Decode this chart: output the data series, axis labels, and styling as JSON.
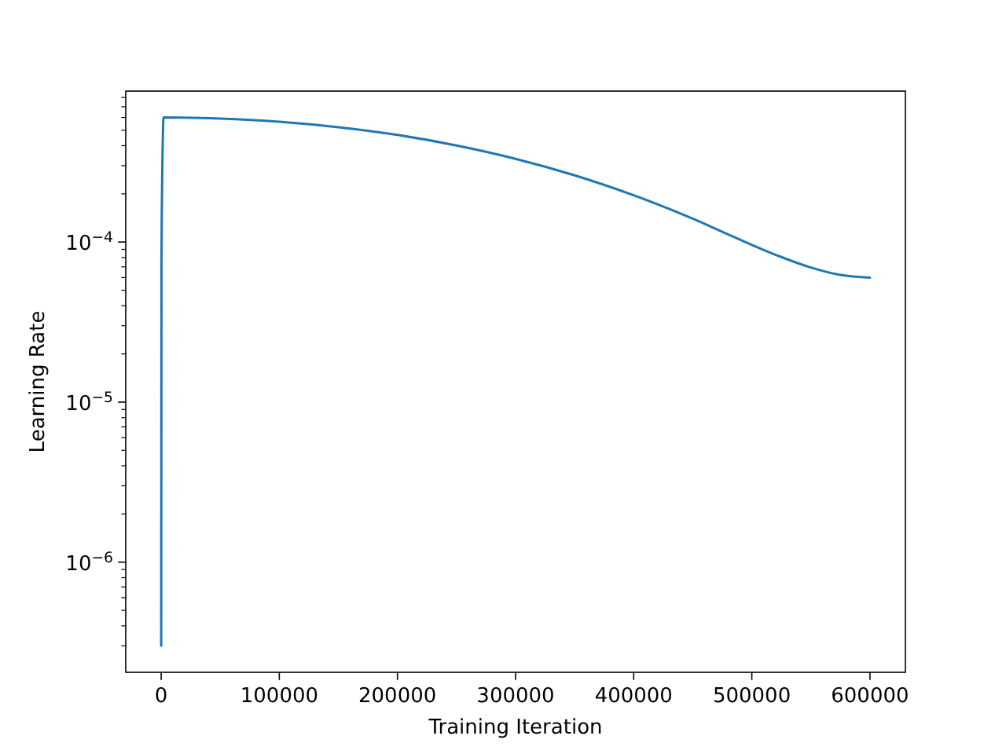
{
  "chart_data": {
    "type": "line",
    "xlabel": "Training Iteration",
    "ylabel": "Learning Rate",
    "log": "y",
    "x": [
      0,
      250,
      500,
      1000,
      2000,
      50000,
      100000,
      150000,
      200000,
      250000,
      300000,
      350000,
      400000,
      450000,
      475000,
      500000,
      525000,
      550000,
      575000,
      600000
    ],
    "series": [
      {
        "color": "#1f77b4",
        "values": [
          3e-07,
          7.5e-05,
          0.00015,
          0.0003,
          0.0006,
          0.000591,
          0.000565,
          0.000522,
          0.000467,
          0.000401,
          0.000331,
          0.000261,
          0.000196,
          0.00014,
          0.000116,
          9.6e-05,
          8.06e-05,
          6.93e-05,
          6.23e-05,
          6e-05
        ]
      }
    ],
    "xlim": [
      -30000,
      630000
    ],
    "xticks": [
      0,
      100000,
      200000,
      300000,
      400000,
      500000,
      600000
    ],
    "ylim": [
      2.05e-07,
      0.000877
    ],
    "yticks": [
      {
        "value": 3e-07,
        "label": null
      },
      {
        "value": 4e-07,
        "label": null
      },
      {
        "value": 5e-07,
        "label": null
      },
      {
        "value": 6e-07,
        "label": null
      },
      {
        "value": 7e-07,
        "label": null
      },
      {
        "value": 8e-07,
        "label": null
      },
      {
        "value": 9e-07,
        "label": null
      },
      {
        "value": 1e-06,
        "label": "10$^{−6}$"
      },
      {
        "value": 2e-06,
        "label": null
      },
      {
        "value": 3e-06,
        "label": null
      },
      {
        "value": 4e-06,
        "label": null
      },
      {
        "value": 5e-06,
        "label": null
      },
      {
        "value": 6e-06,
        "label": null
      },
      {
        "value": 7e-06,
        "label": null
      },
      {
        "value": 8e-06,
        "label": null
      },
      {
        "value": 9e-06,
        "label": null
      },
      {
        "value": 1e-05,
        "label": "10$^{−5}$"
      },
      {
        "value": 2e-05,
        "label": null
      },
      {
        "value": 3e-05,
        "label": null
      },
      {
        "value": 4e-05,
        "label": null
      },
      {
        "value": 5e-05,
        "label": null
      },
      {
        "value": 6e-05,
        "label": null
      },
      {
        "value": 7e-05,
        "label": null
      },
      {
        "value": 8e-05,
        "label": null
      },
      {
        "value": 9e-05,
        "label": null
      },
      {
        "value": 0.0001,
        "label": "10$^{−4}$"
      },
      {
        "value": 0.0002,
        "label": null
      },
      {
        "value": 0.0003,
        "label": null
      },
      {
        "value": 0.0004,
        "label": null
      },
      {
        "value": 0.0005,
        "label": null
      },
      {
        "value": 0.0006,
        "label": null
      },
      {
        "value": 0.0007,
        "label": null
      },
      {
        "value": 0.0008,
        "label": null
      }
    ]
  }
}
